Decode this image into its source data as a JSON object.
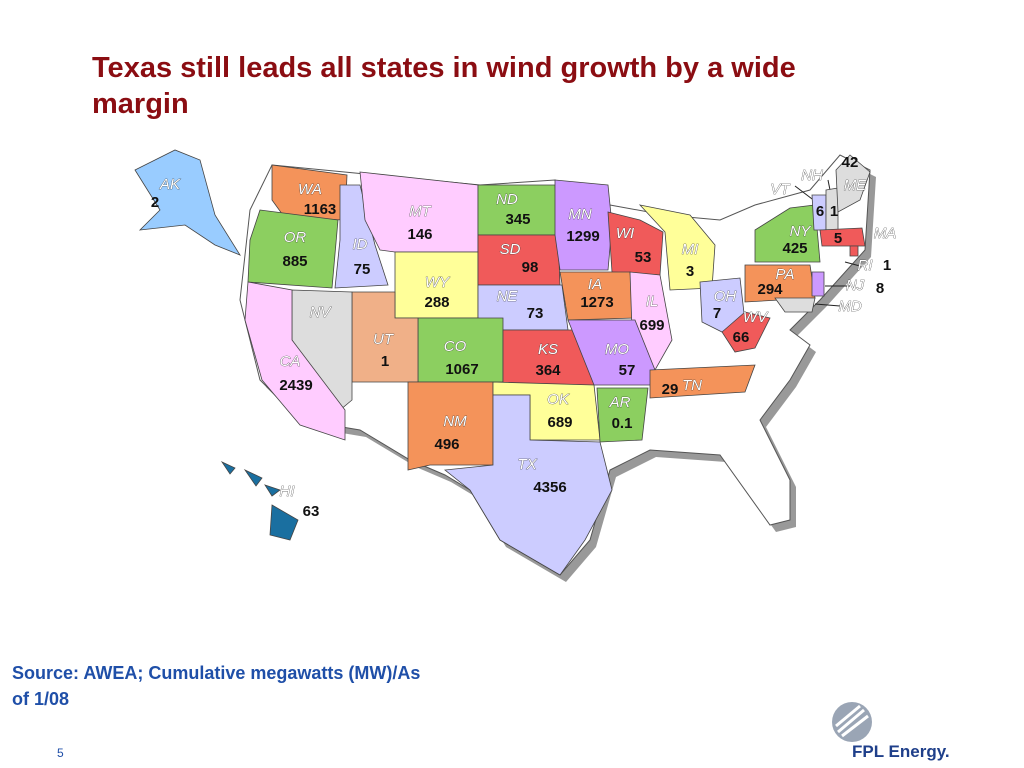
{
  "title": "Texas still leads all states in wind growth by a wide margin",
  "source": "Source: AWEA; Cumulative megawatts (MW)/As of 1/08",
  "page_number": 5,
  "logo": "FPL Energy.",
  "states": [
    {
      "abbr": "AK",
      "mw": 2,
      "color": "#99ccff"
    },
    {
      "abbr": "WA",
      "mw": 1163,
      "color": "#f4935a"
    },
    {
      "abbr": "OR",
      "mw": 885,
      "color": "#8ccf60"
    },
    {
      "abbr": "ID",
      "mw": 75,
      "color": "#ccccff"
    },
    {
      "abbr": "MT",
      "mw": 146,
      "color": "#ffccff"
    },
    {
      "abbr": "WY",
      "mw": 288,
      "color": "#ffff99"
    },
    {
      "abbr": "ND",
      "mw": 345,
      "color": "#8ccf60"
    },
    {
      "abbr": "SD",
      "mw": 98,
      "color": "#f05a5a"
    },
    {
      "abbr": "MN",
      "mw": 1299,
      "color": "#cc99ff"
    },
    {
      "abbr": "WI",
      "mw": 53,
      "color": "#f05a5a"
    },
    {
      "abbr": "MI",
      "mw": 3,
      "color": "#ffff99"
    },
    {
      "abbr": "NE",
      "mw": 73,
      "color": "#ccccff"
    },
    {
      "abbr": "IA",
      "mw": 1273,
      "color": "#f4935a"
    },
    {
      "abbr": "IL",
      "mw": 699,
      "color": "#ffccff"
    },
    {
      "abbr": "CO",
      "mw": 1067,
      "color": "#8ccf60"
    },
    {
      "abbr": "KS",
      "mw": 364,
      "color": "#f05a5a"
    },
    {
      "abbr": "MO",
      "mw": 57,
      "color": "#cc99ff"
    },
    {
      "abbr": "UT",
      "mw": 1,
      "color": "#f0b088"
    },
    {
      "abbr": "NV",
      "color": "#dddddd"
    },
    {
      "abbr": "CA",
      "mw": 2439,
      "color": "#ffccff"
    },
    {
      "abbr": "NM",
      "mw": 496,
      "color": "#f4935a"
    },
    {
      "abbr": "OK",
      "mw": 689,
      "color": "#ffff99"
    },
    {
      "abbr": "AR",
      "mw": 0.1,
      "color": "#8ccf60"
    },
    {
      "abbr": "TX",
      "mw": 4356,
      "color": "#ccccff"
    },
    {
      "abbr": "TN",
      "mw": 29,
      "color": "#f4935a"
    },
    {
      "abbr": "OH",
      "mw": 7,
      "color": "#ccccff"
    },
    {
      "abbr": "WV",
      "mw": 66,
      "color": "#f05a5a"
    },
    {
      "abbr": "PA",
      "mw": 294,
      "color": "#f4935a"
    },
    {
      "abbr": "NY",
      "mw": 425,
      "color": "#8ccf60"
    },
    {
      "abbr": "VT",
      "mw": 6,
      "color": "#ccccff"
    },
    {
      "abbr": "NH",
      "mw": 1,
      "color": "#dddddd"
    },
    {
      "abbr": "ME",
      "mw": 42,
      "color": "#dddddd"
    },
    {
      "abbr": "MA",
      "mw": 5,
      "color": "#f05a5a"
    },
    {
      "abbr": "RI",
      "mw": 1,
      "color": "#f05a5a"
    },
    {
      "abbr": "NJ",
      "mw": 8,
      "color": "#cc99ff"
    },
    {
      "abbr": "MD",
      "color": "#dddddd"
    },
    {
      "abbr": "HI",
      "mw": 63,
      "color": "#1a6fa0"
    }
  ]
}
